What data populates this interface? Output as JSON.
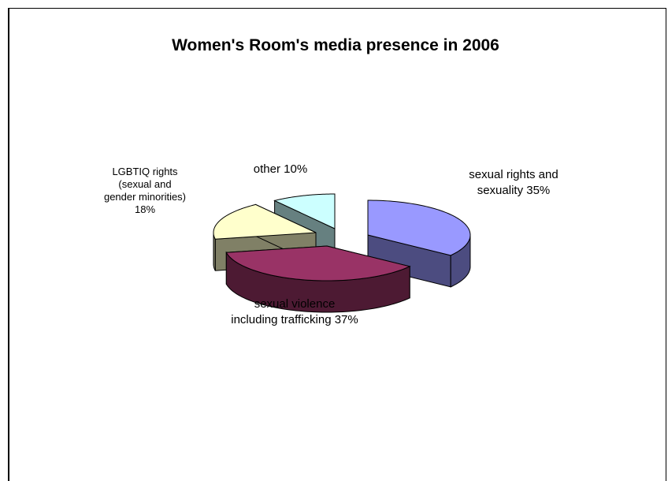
{
  "chart_data": {
    "type": "pie",
    "title": "Women's Room's media presence in 2006",
    "slices": [
      {
        "label_lines": [
          "sexual rights and",
          "sexuality 35%"
        ],
        "value": 35,
        "top": "#9999ff",
        "side": "#4c4c80"
      },
      {
        "label_lines": [
          "sexual violence",
          "including trafficking 37%"
        ],
        "value": 37,
        "top": "#993366",
        "side": "#4d1a33"
      },
      {
        "label_lines": [
          "LGBTIQ rights",
          "(sexual and",
          "gender minorities)",
          "18%"
        ],
        "value": 18,
        "top": "#ffffcc",
        "side": "#808066"
      },
      {
        "label_lines": [
          "other 10%"
        ],
        "value": 10,
        "top": "#ccffff",
        "side": "#668080"
      }
    ]
  }
}
